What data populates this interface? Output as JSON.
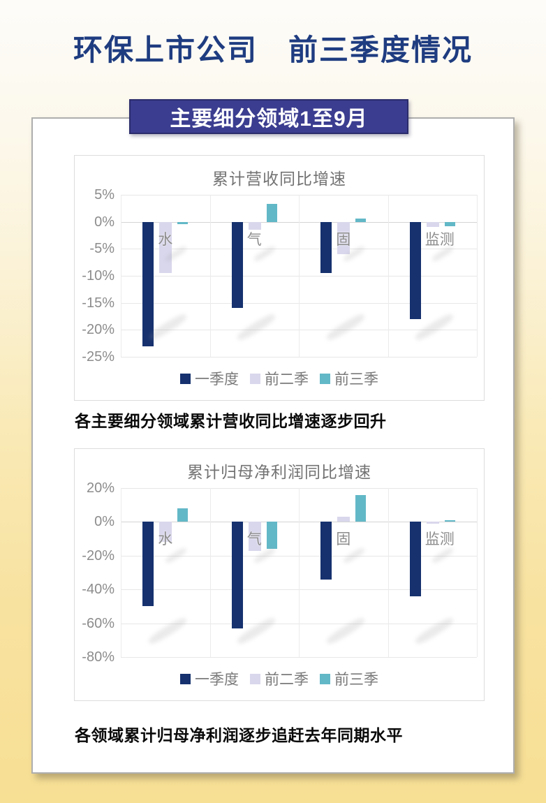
{
  "page": {
    "title": "环保上市公司　前三季度情况",
    "banner": "主要细分领域1至9月",
    "caption1": "各主要细分领域累计营收同比增速逐步回升",
    "caption2": "各领域累计归母净利润逐步追赶去年同期水平"
  },
  "colors": {
    "title_text": "#1E3C80",
    "banner_bg": "#3B3D90",
    "banner_text": "#FFFFFF",
    "series_q1": "#16316E",
    "series_h1": "#D9D7EC",
    "series_9m": "#62B8C7",
    "axis_text": "#8C8C8C",
    "grid": "#E7E7E7",
    "page_bg_bottom": "#F7DF94"
  },
  "chart_data": [
    {
      "type": "bar",
      "title": "累计营收同比增速",
      "categories": [
        "水",
        "气",
        "固",
        "监测"
      ],
      "series": [
        {
          "name": "一季度",
          "color": "#16316E",
          "values": [
            -23,
            -16,
            -9.5,
            -18
          ]
        },
        {
          "name": "前二季",
          "color": "#D9D7EC",
          "values": [
            -9.5,
            -1.5,
            -6,
            -1
          ]
        },
        {
          "name": "前三季",
          "color": "#62B8C7",
          "values": [
            -0.4,
            3.3,
            0.6,
            -0.8
          ]
        }
      ],
      "ylabel": "",
      "xlabel": "",
      "ylim": [
        -25,
        5
      ],
      "ytick_step": 5,
      "ytick_labels": [
        "5%",
        "0%",
        "-5%",
        "-10%",
        "-15%",
        "-20%",
        "-25%"
      ],
      "legend_position": "bottom",
      "grid": true
    },
    {
      "type": "bar",
      "title": "累计归母净利润同比增速",
      "categories": [
        "水",
        "气",
        "固",
        "监测"
      ],
      "series": [
        {
          "name": "一季度",
          "color": "#16316E",
          "values": [
            -50,
            -63,
            -34,
            -44
          ]
        },
        {
          "name": "前二季",
          "color": "#D9D7EC",
          "values": [
            -12,
            -17,
            3,
            -1
          ]
        },
        {
          "name": "前三季",
          "color": "#62B8C7",
          "values": [
            8,
            -16,
            16,
            1
          ]
        }
      ],
      "ylabel": "",
      "xlabel": "",
      "ylim": [
        -80,
        20
      ],
      "ytick_step": 20,
      "ytick_labels": [
        "20%",
        "0%",
        "-20%",
        "-40%",
        "-60%",
        "-80%"
      ],
      "legend_position": "bottom",
      "grid": true
    }
  ]
}
